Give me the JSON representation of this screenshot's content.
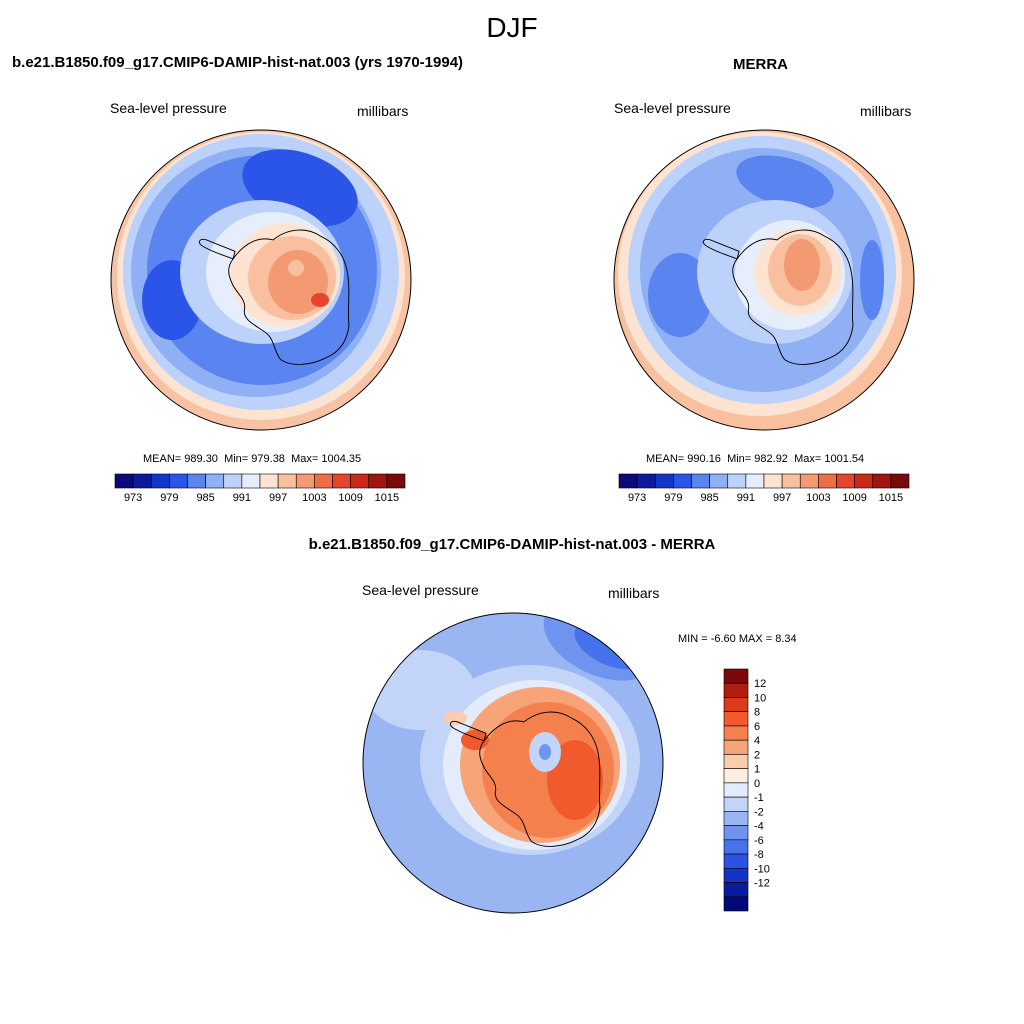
{
  "figure": {
    "title": "DJF"
  },
  "panels": {
    "model": {
      "title": "b.e21.B1850.f09_g17.CMIP6-DAMIP-hist-nat.003 (yrs 1970-1994)",
      "variable": "Sea-level pressure",
      "units": "millibars",
      "mean_label": "MEAN=",
      "mean": "989.30",
      "min_label": "Min=",
      "min": "979.38",
      "max_label": "Max=",
      "max": "1004.35"
    },
    "obs": {
      "title": "MERRA",
      "variable": "Sea-level pressure",
      "units": "millibars",
      "mean_label": "MEAN=",
      "mean": "990.16",
      "min_label": "Min=",
      "min": "982.92",
      "max_label": "Max=",
      "max": "1001.54"
    },
    "diff": {
      "title": "b.e21.B1850.f09_g17.CMIP6-DAMIP-hist-nat.003 - MERRA",
      "variable": "Sea-level pressure",
      "units": "millibars",
      "min_label": "MIN =",
      "min": "-6.60",
      "max_label": "MAX =",
      "max": "8.34"
    }
  },
  "colorbars": {
    "abs_ticks": [
      "973",
      "979",
      "985",
      "991",
      "997",
      "1003",
      "1009",
      "1015"
    ],
    "abs_colors": [
      "#0a0a7a",
      "#0d1a9e",
      "#1436c8",
      "#2b55e8",
      "#5a84f0",
      "#8fb0f5",
      "#bdd2fa",
      "#e6eefc",
      "#fde4d2",
      "#f9c0a0",
      "#f49a72",
      "#ef6e46",
      "#e5452a",
      "#c9281a",
      "#a0150f",
      "#7a0a0a"
    ],
    "diff_ticks": [
      "12",
      "10",
      "8",
      "6",
      "4",
      "2",
      "1",
      "0",
      "-1",
      "-2",
      "-4",
      "-6",
      "-8",
      "-10",
      "-12"
    ],
    "diff_colors": [
      "#7a0a0a",
      "#b01e10",
      "#dd3a1c",
      "#f05a2c",
      "#f4804e",
      "#f7a478",
      "#fbccae",
      "#fdeee0",
      "#e4ecfb",
      "#c2d5f8",
      "#99b6f3",
      "#6e94ef",
      "#4673ec",
      "#2a52e6",
      "#1434c8",
      "#0a1c9e",
      "#020a7a"
    ]
  },
  "chart_data": [
    {
      "type": "heatmap",
      "title": "b.e21.B1850.f09_g17.CMIP6-DAMIP-hist-nat.003 (yrs 1970-1994)",
      "variable": "Sea-level pressure",
      "units": "millibars",
      "projection": "south-polar-stereographic",
      "region": "Antarctica / Southern Ocean",
      "contour_levels": [
        973,
        976,
        979,
        982,
        985,
        988,
        991,
        994,
        997,
        1000,
        1003,
        1006,
        1009,
        1012,
        1015
      ],
      "stats": {
        "mean": 989.3,
        "min": 979.38,
        "max": 1004.35
      }
    },
    {
      "type": "heatmap",
      "title": "MERRA",
      "variable": "Sea-level pressure",
      "units": "millibars",
      "projection": "south-polar-stereographic",
      "region": "Antarctica / Southern Ocean",
      "contour_levels": [
        973,
        976,
        979,
        982,
        985,
        988,
        991,
        994,
        997,
        1000,
        1003,
        1006,
        1009,
        1012,
        1015
      ],
      "stats": {
        "mean": 990.16,
        "min": 982.92,
        "max": 1001.54
      }
    },
    {
      "type": "heatmap",
      "title": "b.e21.B1850.f09_g17.CMIP6-DAMIP-hist-nat.003 - MERRA",
      "variable": "Sea-level pressure",
      "units": "millibars",
      "projection": "south-polar-stereographic",
      "region": "Antarctica / Southern Ocean",
      "contour_levels": [
        -12,
        -10,
        -8,
        -6,
        -4,
        -2,
        -1,
        0,
        1,
        2,
        4,
        6,
        8,
        10,
        12
      ],
      "stats": {
        "min": -6.6,
        "max": 8.34
      }
    }
  ]
}
